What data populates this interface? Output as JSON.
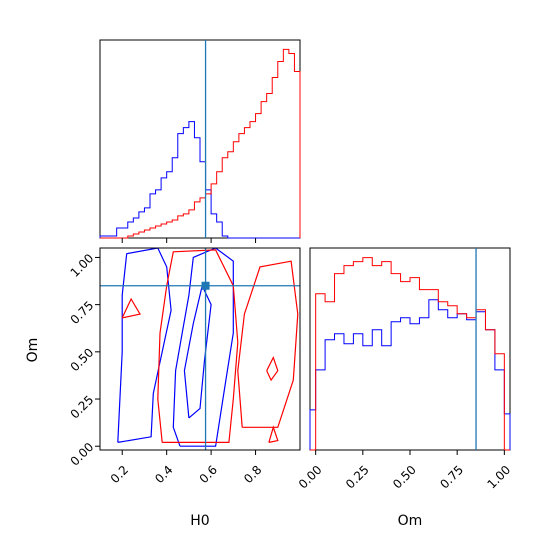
{
  "chart_data": [
    {
      "panel": "H0 marginal",
      "type": "histogram",
      "x_ticks": [
        0.2,
        0.4,
        0.6,
        0.8
      ],
      "xlim": [
        0.1,
        1.0
      ],
      "y_ticks_shown": false,
      "truth_line": 0.575,
      "series": [
        {
          "color": "#0000ff",
          "bins": [
            0.1,
            0.125,
            0.15,
            0.175,
            0.2,
            0.225,
            0.25,
            0.275,
            0.3,
            0.325,
            0.35,
            0.375,
            0.4,
            0.425,
            0.45,
            0.475,
            0.5,
            0.525,
            0.55,
            0.575,
            0.6,
            0.625,
            0.65,
            0.675,
            0.7,
            0.725,
            0.75,
            0.775,
            0.8,
            0.825,
            0.85,
            0.875,
            0.9,
            0.925,
            0.95,
            0.975,
            1.0
          ],
          "values": [
            1,
            1,
            1,
            5,
            5,
            8,
            10,
            13,
            15,
            22,
            24,
            30,
            33,
            40,
            52,
            55,
            58,
            50,
            38,
            24,
            12,
            8,
            1,
            0,
            0,
            0,
            0,
            0,
            0,
            0,
            0,
            0,
            0,
            0,
            0,
            0
          ]
        },
        {
          "color": "#ff0000",
          "bins": [
            0.1,
            0.125,
            0.15,
            0.175,
            0.2,
            0.225,
            0.25,
            0.275,
            0.3,
            0.325,
            0.35,
            0.375,
            0.4,
            0.425,
            0.45,
            0.475,
            0.5,
            0.525,
            0.55,
            0.575,
            0.6,
            0.625,
            0.65,
            0.675,
            0.7,
            0.725,
            0.75,
            0.775,
            0.8,
            0.825,
            0.85,
            0.875,
            0.9,
            0.925,
            0.95,
            0.975,
            1.0
          ],
          "values": [
            0,
            0,
            0,
            0,
            0,
            1,
            2,
            3,
            4,
            5,
            6,
            7,
            8,
            9,
            11,
            12,
            14,
            18,
            20,
            22,
            27,
            33,
            40,
            43,
            48,
            52,
            55,
            58,
            62,
            68,
            72,
            80,
            88,
            94,
            92,
            83
          ]
        }
      ]
    },
    {
      "panel": "H0 vs Om joint",
      "type": "contour",
      "xlabel": "H0",
      "ylabel": "Om",
      "x_ticks": [
        0.2,
        0.4,
        0.6,
        0.8
      ],
      "y_ticks": [
        0.0,
        0.25,
        0.5,
        0.75,
        1.0
      ],
      "xlim": [
        0.1,
        1.0
      ],
      "ylim": [
        -0.02,
        1.05
      ],
      "truth_point": [
        0.575,
        0.85
      ],
      "series": [
        {
          "color": "#0000ff",
          "contours": [
            [
              [
                0.18,
                0.02
              ],
              [
                0.2,
                0.5
              ],
              [
                0.2,
                0.8
              ],
              [
                0.22,
                1.02
              ],
              [
                0.36,
                1.05
              ],
              [
                0.4,
                0.95
              ],
              [
                0.42,
                0.72
              ],
              [
                0.38,
                0.5
              ],
              [
                0.34,
                0.28
              ],
              [
                0.33,
                0.05
              ],
              [
                0.18,
                0.02
              ]
            ],
            [
              [
                0.46,
                0.0
              ],
              [
                0.43,
                0.1
              ],
              [
                0.44,
                0.4
              ],
              [
                0.47,
                0.6
              ],
              [
                0.5,
                0.8
              ],
              [
                0.52,
                1.0
              ],
              [
                0.62,
                1.05
              ],
              [
                0.7,
                0.98
              ],
              [
                0.7,
                0.6
              ],
              [
                0.66,
                0.3
              ],
              [
                0.62,
                0.0
              ],
              [
                0.46,
                0.0
              ]
            ],
            [
              [
                0.5,
                0.15
              ],
              [
                0.48,
                0.4
              ],
              [
                0.52,
                0.65
              ],
              [
                0.56,
                0.85
              ],
              [
                0.6,
                0.75
              ],
              [
                0.57,
                0.45
              ],
              [
                0.55,
                0.2
              ],
              [
                0.5,
                0.15
              ]
            ]
          ]
        },
        {
          "color": "#ff0000",
          "contours": [
            [
              [
                0.38,
                0.02
              ],
              [
                0.36,
                0.25
              ],
              [
                0.37,
                0.6
              ],
              [
                0.4,
                0.85
              ],
              [
                0.43,
                1.03
              ],
              [
                0.62,
                1.04
              ],
              [
                0.7,
                0.85
              ],
              [
                0.72,
                0.55
              ],
              [
                0.7,
                0.25
              ],
              [
                0.68,
                0.02
              ],
              [
                0.38,
                0.02
              ]
            ],
            [
              [
                0.74,
                0.1
              ],
              [
                0.72,
                0.4
              ],
              [
                0.75,
                0.7
              ],
              [
                0.82,
                0.95
              ],
              [
                0.96,
                0.98
              ],
              [
                0.99,
                0.7
              ],
              [
                0.97,
                0.35
              ],
              [
                0.9,
                0.1
              ],
              [
                0.74,
                0.1
              ]
            ],
            [
              [
                0.2,
                0.68
              ],
              [
                0.24,
                0.78
              ],
              [
                0.28,
                0.7
              ],
              [
                0.2,
                0.68
              ]
            ],
            [
              [
                0.85,
                0.4
              ],
              [
                0.88,
                0.47
              ],
              [
                0.9,
                0.4
              ],
              [
                0.87,
                0.35
              ],
              [
                0.85,
                0.4
              ]
            ],
            [
              [
                0.86,
                0.02
              ],
              [
                0.88,
                0.1
              ],
              [
                0.9,
                0.03
              ],
              [
                0.86,
                0.02
              ]
            ]
          ]
        }
      ]
    },
    {
      "panel": "Om marginal",
      "type": "histogram",
      "xlabel": "Om",
      "x_ticks": [
        0.0,
        0.25,
        0.5,
        0.75,
        1.0
      ],
      "xlim": [
        -0.03,
        1.03
      ],
      "y_ticks_shown": false,
      "truth_line": 0.85,
      "series": [
        {
          "color": "#0000ff",
          "bins": [
            -0.03,
            0.0,
            0.05,
            0.1,
            0.15,
            0.2,
            0.25,
            0.3,
            0.35,
            0.4,
            0.45,
            0.5,
            0.55,
            0.6,
            0.65,
            0.7,
            0.75,
            0.8,
            0.85,
            0.9,
            0.95,
            1.0,
            1.03
          ],
          "values": [
            20,
            40,
            55,
            58,
            53,
            58,
            52,
            60,
            52,
            64,
            66,
            63,
            66,
            75,
            70,
            66,
            68,
            65,
            69,
            60,
            40,
            18
          ]
        },
        {
          "color": "#ff0000",
          "bins": [
            -0.03,
            0.0,
            0.05,
            0.1,
            0.15,
            0.2,
            0.25,
            0.3,
            0.35,
            0.4,
            0.45,
            0.5,
            0.55,
            0.6,
            0.65,
            0.7,
            0.75,
            0.8,
            0.85,
            0.9,
            0.95,
            1.0,
            1.03
          ],
          "values": [
            0,
            78,
            74,
            88,
            92,
            94,
            96,
            92,
            94,
            88,
            84,
            86,
            80,
            80,
            74,
            72,
            68,
            66,
            70,
            60,
            48,
            0
          ]
        }
      ]
    }
  ],
  "colors": {
    "truth": "#1f77b4",
    "series_blue": "#0000ff",
    "series_red": "#ff0000",
    "axes": "#000000"
  }
}
